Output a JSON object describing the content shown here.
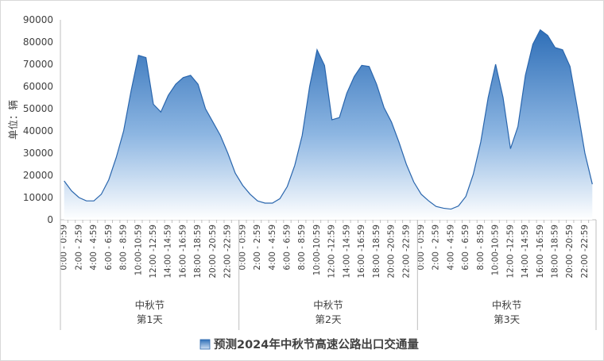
{
  "chart_data": {
    "type": "area",
    "ylabel": "单位：辆",
    "ylim": [
      0,
      90000
    ],
    "yticks": [
      0,
      10000,
      20000,
      30000,
      40000,
      50000,
      60000,
      70000,
      80000,
      90000
    ],
    "grid": false,
    "legend": "bottom",
    "colors": {
      "area_top": "#2f6fb8",
      "area_bottom": "#ffffff",
      "line": "#2a66ad"
    },
    "x_labels": [
      "0:00 - 0:59",
      "2:00 - 2:59",
      "4:00 - 4:59",
      "6:00 - 6:59",
      "8:00 - 8:59",
      "10:00-10:59",
      "12:00 -12:59",
      "14:00 -14:59",
      "16:00 -16:59",
      "18:00 -18:59",
      "20:00 -20:59",
      "22:00 -22:59"
    ],
    "groups": [
      {
        "line1": "中秋节",
        "line2": "第1天"
      },
      {
        "line1": "中秋节",
        "line2": "第2天"
      },
      {
        "line1": "中秋节",
        "line2": "第3天"
      }
    ],
    "series": [
      {
        "name": "预测2024年中秋节高速公路出口交通量",
        "values": [
          17500,
          13000,
          10000,
          8500,
          8500,
          11500,
          18000,
          28000,
          40000,
          58000,
          74000,
          73000,
          52000,
          48500,
          56000,
          61000,
          64000,
          65000,
          61000,
          50000,
          44000,
          38000,
          30000,
          21000,
          15500,
          11500,
          8500,
          7500,
          7500,
          9500,
          15000,
          24500,
          38000,
          60000,
          76500,
          69500,
          45000,
          46000,
          57000,
          64500,
          69500,
          69000,
          61000,
          50500,
          44000,
          35000,
          25000,
          17000,
          11500,
          8500,
          6000,
          5200,
          4800,
          6200,
          10500,
          20500,
          35000,
          55000,
          70000,
          55000,
          32000,
          42000,
          65000,
          79000,
          85500,
          83000,
          77500,
          76500,
          69000,
          50000,
          30000,
          16000
        ]
      }
    ]
  }
}
